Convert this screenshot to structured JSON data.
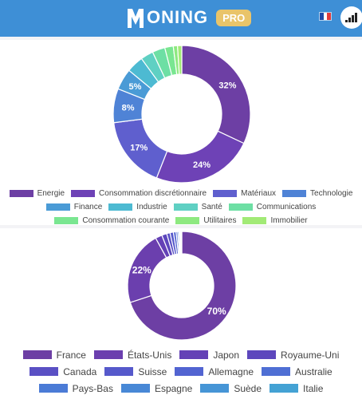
{
  "app": {
    "name": "ONING",
    "badge": "PRO",
    "language_flag": "french-flag-icon",
    "account_icon": "signal-bars-icon"
  },
  "colors": {
    "header": "#3e8fd6",
    "badge": "#e9c46a"
  },
  "chart_data": [
    {
      "type": "pie",
      "donut": true,
      "title": "",
      "legend_position": "bottom",
      "categories": [
        "Energie",
        "Consommation discrétionnaire",
        "Matériaux",
        "Technologie",
        "Finance",
        "Industrie",
        "Santé",
        "Communications",
        "Consommation courante",
        "Utilitaires",
        "Immobilier"
      ],
      "values": [
        32,
        24,
        17,
        8,
        5,
        4,
        3,
        3,
        2,
        1,
        1
      ],
      "labels": [
        "32%",
        "24%",
        "17%",
        "8%",
        "5%",
        "",
        "",
        "",
        "",
        "",
        ""
      ],
      "colors": [
        "#6d3fa4",
        "#6e42b6",
        "#5f5fce",
        "#4f83d6",
        "#4a9bd6",
        "#4dbad2",
        "#5fd0c3",
        "#6ddfa4",
        "#7ae691",
        "#8ee980",
        "#a2ea76"
      ],
      "legend_rows": [
        [
          0,
          1,
          2,
          3
        ],
        [
          4,
          5,
          6,
          7
        ],
        [
          8,
          9,
          10
        ]
      ]
    },
    {
      "type": "pie",
      "donut": true,
      "title": "",
      "legend_position": "bottom",
      "categories": [
        "France",
        "États-Unis",
        "Japon",
        "Royaume-Uni",
        "Canada",
        "Suisse",
        "Allemagne",
        "Australie",
        "Pays-Bas",
        "Espagne",
        "Suède",
        "Italie"
      ],
      "values": [
        70,
        22,
        2,
        1.5,
        1,
        1,
        0.8,
        0.5,
        0.4,
        0.3,
        0.3,
        0.2
      ],
      "labels": [
        "70%",
        "22%",
        "",
        "",
        "",
        "",
        "",
        "",
        "",
        "",
        "",
        ""
      ],
      "colors": [
        "#6d3fa4",
        "#6b3fae",
        "#6441b6",
        "#5d47bd",
        "#5a50c4",
        "#5659cb",
        "#5264d1",
        "#4f6fd4",
        "#4b7bd6",
        "#4888d6",
        "#4695d6",
        "#44a2d4"
      ],
      "legend_rows": [
        [
          0,
          1,
          2,
          3
        ],
        [
          4,
          5,
          6,
          7
        ],
        [
          8,
          9,
          10,
          11
        ]
      ]
    }
  ]
}
